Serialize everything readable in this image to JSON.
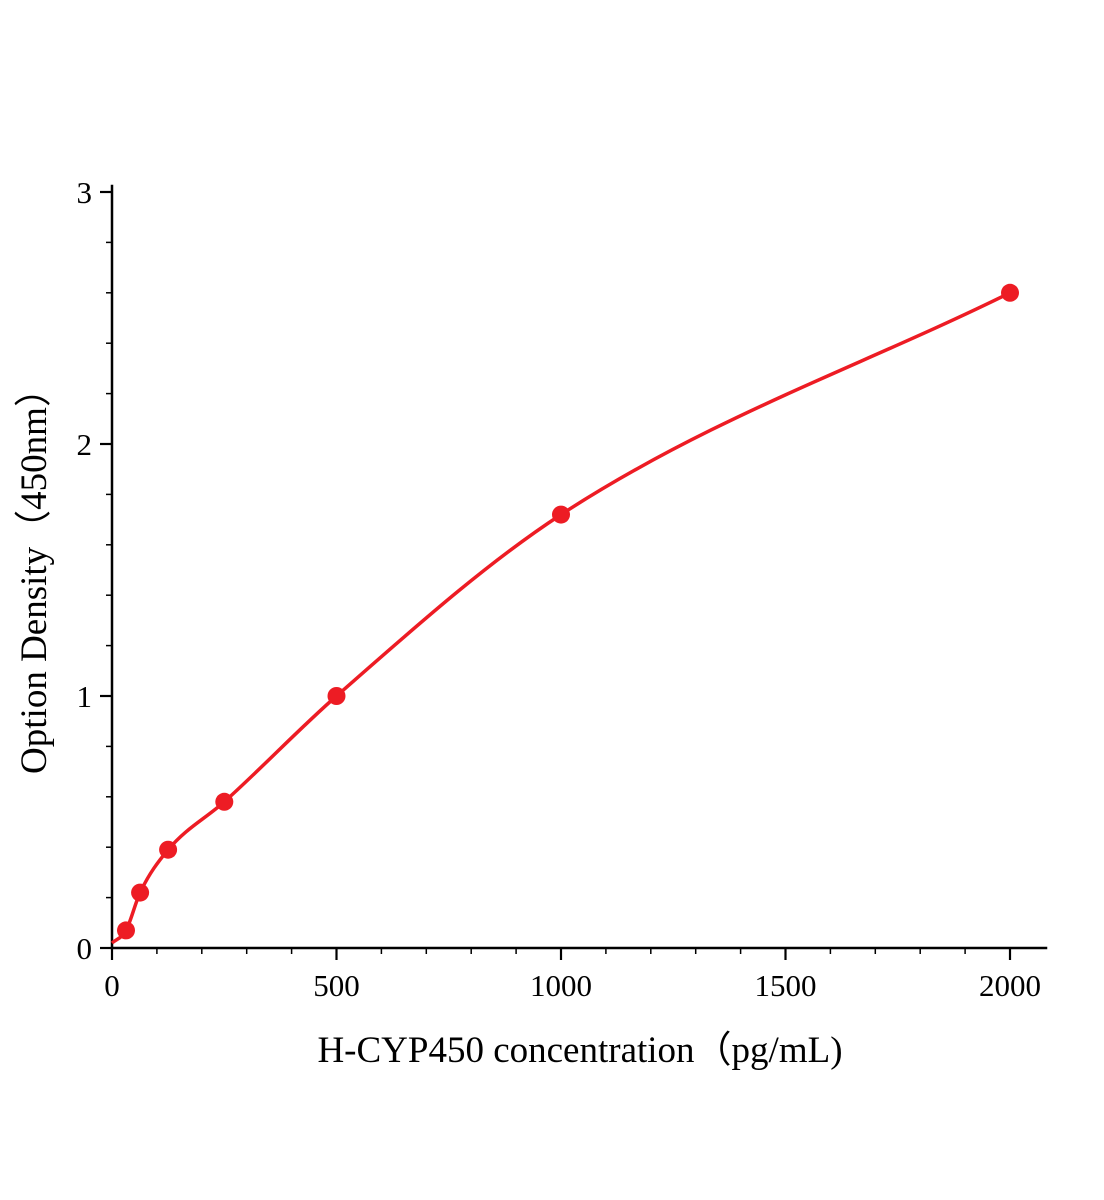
{
  "figure": {
    "background": "#ffffff"
  },
  "chart_data": {
    "type": "scatter",
    "title": "",
    "xlabel": "H-CYP450 concentration（pg/mL)",
    "ylabel": "Option Density（450nm）",
    "xlim": [
      0,
      2000
    ],
    "ylim": [
      0,
      3
    ],
    "x_ticks": [
      0,
      500,
      1000,
      1500,
      2000
    ],
    "y_ticks": [
      0,
      1,
      2,
      3
    ],
    "x_minor_step": 100,
    "y_minor_step": 0.2,
    "grid": "off",
    "legend": "none",
    "points": [
      {
        "x": 31.25,
        "y": 0.07
      },
      {
        "x": 62.5,
        "y": 0.22
      },
      {
        "x": 125,
        "y": 0.39
      },
      {
        "x": 250,
        "y": 0.58
      },
      {
        "x": 500,
        "y": 1.0
      },
      {
        "x": 1000,
        "y": 1.72
      },
      {
        "x": 2000,
        "y": 2.6
      }
    ],
    "curve_start": {
      "x": 0,
      "y": 0.02
    },
    "curve_color": "#ed1c24",
    "point_color": "#ed1c24",
    "point_radius": 9,
    "axis_color": "#000000"
  }
}
